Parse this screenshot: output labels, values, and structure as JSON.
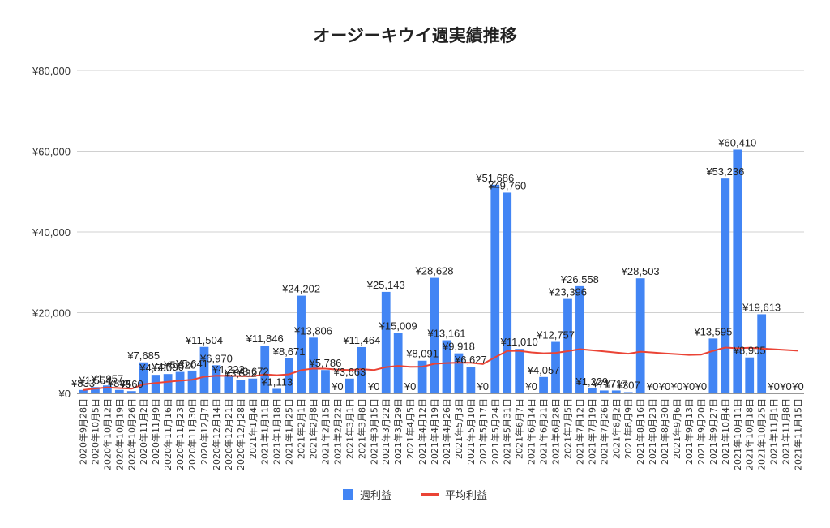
{
  "chart_data": {
    "type": "bar",
    "title": "オージーキウイ週実績推移",
    "xlabel": "",
    "ylabel": "",
    "ylim": [
      0,
      80000
    ],
    "y_ticks": [
      "¥0",
      "¥20,000",
      "¥40,000",
      "¥60,000",
      "¥80,000"
    ],
    "grid": true,
    "legend_position": "bottom",
    "categories": [
      "2020年9月28日",
      "2020年10月5日",
      "2020年10月12日",
      "2020年10月19日",
      "2020年10月26日",
      "2020年11月2日",
      "2020年11月9日",
      "2020年11月16日",
      "2020年11月23日",
      "2020年11月30日",
      "2020年12月7日",
      "2020年12月14日",
      "2020年12月21日",
      "2020年12月28日",
      "2021年1月4日",
      "2021年1月11日",
      "2021年1月18日",
      "2021年1月25日",
      "2021年2月1日",
      "2021年2月8日",
      "2021年2月15日",
      "2021年2月22日",
      "2021年3月1日",
      "2021年3月8日",
      "2021年3月15日",
      "2021年3月22日",
      "2021年3月29日",
      "2021年4月5日",
      "2021年4月12日",
      "2021年4月19日",
      "2021年4月26日",
      "2021年5月3日",
      "2021年5月10日",
      "2021年5月17日",
      "2021年5月24日",
      "2021年5月31日",
      "2021年6月7日",
      "2021年6月14日",
      "2021年6月21日",
      "2021年6月28日",
      "2021年7月5日",
      "2021年7月12日",
      "2021年7月19日",
      "2021年7月26日",
      "2021年8月2日",
      "2021年8月9日",
      "2021年8月16日",
      "2021年8月23日",
      "2021年8月30日",
      "2021年9月6日",
      "2021年9月13日",
      "2021年9月20日",
      "2021年9月27日",
      "2021年10月4日",
      "2021年10月11日",
      "2021年10月18日",
      "2021年10月25日",
      "2021年11月1日",
      "2021年11月8日",
      "2021年11月15日"
    ],
    "series": [
      {
        "name": "週利益",
        "color": "#4285f4",
        "values": [
          833,
          1554,
          1957,
          844,
          560,
          7685,
          4590,
          4790,
          5320,
          5641,
          11504,
          6970,
          4222,
          3332,
          3672,
          11846,
          1113,
          8671,
          24202,
          13806,
          5786,
          0,
          3663,
          11464,
          0,
          25143,
          15009,
          0,
          8091,
          28628,
          13161,
          9918,
          6627,
          0,
          51686,
          49760,
          11010,
          0,
          4057,
          12757,
          23396,
          26558,
          1229,
          717,
          717,
          307,
          28503,
          0,
          0,
          0,
          0,
          0,
          13595,
          53236,
          60410,
          8905,
          19613,
          0,
          0,
          0
        ],
        "labels": [
          "¥833",
          "¥1,554",
          "¥1,957",
          "¥844",
          "¥560",
          "¥7,685",
          "¥4,590",
          "¥4,790",
          "¥5,320",
          "¥5,641",
          "¥11,504",
          "¥6,970",
          "¥4,222",
          "¥3,332",
          "¥3,672",
          "¥11,846",
          "¥1,113",
          "¥8,671",
          "¥24,202",
          "¥13,806",
          "¥5,786",
          "¥0",
          "¥3,663",
          "¥11,464",
          "¥0",
          "¥25,143",
          "¥15,009",
          "¥0",
          "¥8,091",
          "¥28,628",
          "¥13,161",
          "¥9,918",
          "¥6,627",
          "¥0",
          "¥51,686",
          "¥49,760",
          "¥11,010",
          "¥0",
          "¥4,057",
          "¥12,757",
          "¥23,396",
          "¥26,558",
          "¥1,229",
          "¥717",
          "¥717",
          "¥307",
          "¥28,503",
          "¥0",
          "¥0",
          "¥0",
          "¥0",
          "¥0",
          "¥13,595",
          "¥53,236",
          "¥60,410",
          "¥8,905",
          "¥19,613",
          "¥0",
          "¥0",
          "¥0"
        ]
      },
      {
        "name": "平均利益",
        "color": "#ea4335",
        "type": "line",
        "values": [
          833,
          1194,
          1448,
          1297,
          1150,
          2239,
          2575,
          2852,
          3126,
          3378,
          4117,
          4355,
          4345,
          4273,
          4233,
          4709,
          4497,
          4729,
          5754,
          6157,
          6139,
          5860,
          5764,
          6002,
          5762,
          6507,
          6813,
          6570,
          6622,
          7338,
          7526,
          7611,
          7572,
          7257,
          8946,
          10516,
          10534,
          10158,
          9936,
          10028,
          10461,
          10959,
          10670,
          10382,
          10108,
          9833,
          10341,
          10126,
          9919,
          9721,
          9530,
          9612,
          10536,
          11364,
          11169,
          11320,
          11121,
          10929,
          10744,
          10565
        ]
      }
    ]
  }
}
